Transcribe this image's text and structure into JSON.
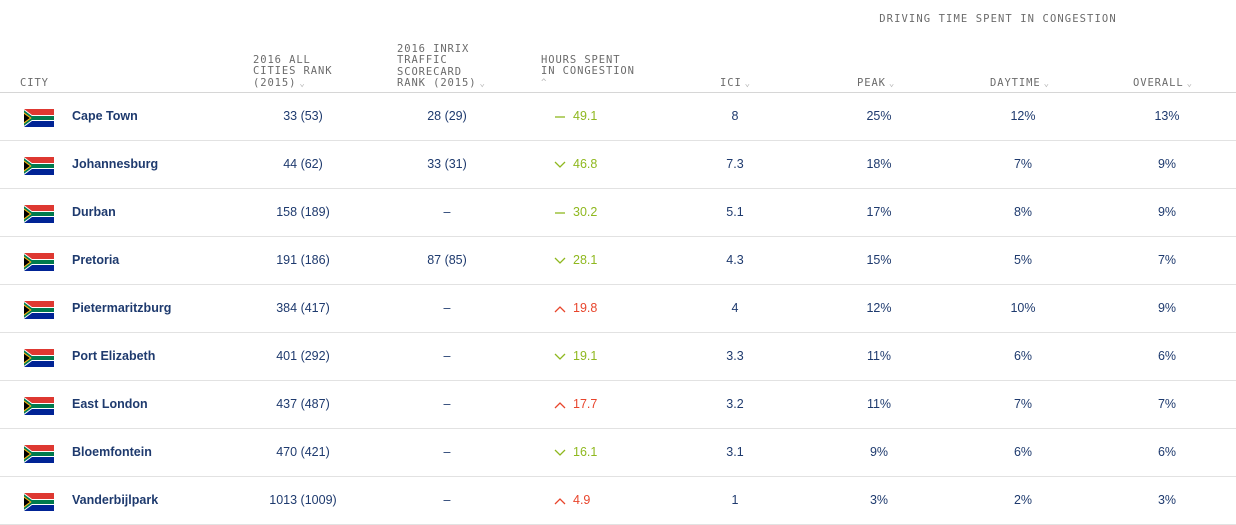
{
  "group_header": "DRIVING TIME SPENT IN CONGESTION",
  "columns": {
    "city": "CITY",
    "all_cities_rank": "2016 ALL\nCITIES RANK\n(2015)",
    "scorecard_rank": "2016 INRIX\nTRAFFIC\nSCORECARD\nRANK (2015)",
    "hours": "HOURS SPENT\nIN CONGESTION",
    "ici": "ICI",
    "peak": "PEAK",
    "daytime": "DAYTIME",
    "overall": "OVERALL"
  },
  "colors": {
    "up": "#e8452c",
    "down": "#8fb81f",
    "flat": "#8fb81f",
    "text": "#1e3a6e"
  },
  "rows": [
    {
      "city": "Cape Town",
      "rank": "33 (53)",
      "scorecard": "28 (29)",
      "trend": "flat",
      "hours": "49.1",
      "ici": "8",
      "peak": "25%",
      "daytime": "12%",
      "overall": "13%"
    },
    {
      "city": "Johannesburg",
      "rank": "44 (62)",
      "scorecard": "33 (31)",
      "trend": "down",
      "hours": "46.8",
      "ici": "7.3",
      "peak": "18%",
      "daytime": "7%",
      "overall": "9%"
    },
    {
      "city": "Durban",
      "rank": "158 (189)",
      "scorecard": "–",
      "trend": "flat",
      "hours": "30.2",
      "ici": "5.1",
      "peak": "17%",
      "daytime": "8%",
      "overall": "9%"
    },
    {
      "city": "Pretoria",
      "rank": "191 (186)",
      "scorecard": "87 (85)",
      "trend": "down",
      "hours": "28.1",
      "ici": "4.3",
      "peak": "15%",
      "daytime": "5%",
      "overall": "7%"
    },
    {
      "city": "Pietermaritzburg",
      "rank": "384 (417)",
      "scorecard": "–",
      "trend": "up",
      "hours": "19.8",
      "ici": "4",
      "peak": "12%",
      "daytime": "10%",
      "overall": "9%"
    },
    {
      "city": "Port Elizabeth",
      "rank": "401 (292)",
      "scorecard": "–",
      "trend": "down",
      "hours": "19.1",
      "ici": "3.3",
      "peak": "11%",
      "daytime": "6%",
      "overall": "6%"
    },
    {
      "city": "East London",
      "rank": "437 (487)",
      "scorecard": "–",
      "trend": "up",
      "hours": "17.7",
      "ici": "3.2",
      "peak": "11%",
      "daytime": "7%",
      "overall": "7%"
    },
    {
      "city": "Bloemfontein",
      "rank": "470 (421)",
      "scorecard": "–",
      "trend": "down",
      "hours": "16.1",
      "ici": "3.1",
      "peak": "9%",
      "daytime": "6%",
      "overall": "6%"
    },
    {
      "city": "Vanderbijlpark",
      "rank": "1013 (1009)",
      "scorecard": "–",
      "trend": "up",
      "hours": "4.9",
      "ici": "1",
      "peak": "3%",
      "daytime": "2%",
      "overall": "3%"
    }
  ]
}
